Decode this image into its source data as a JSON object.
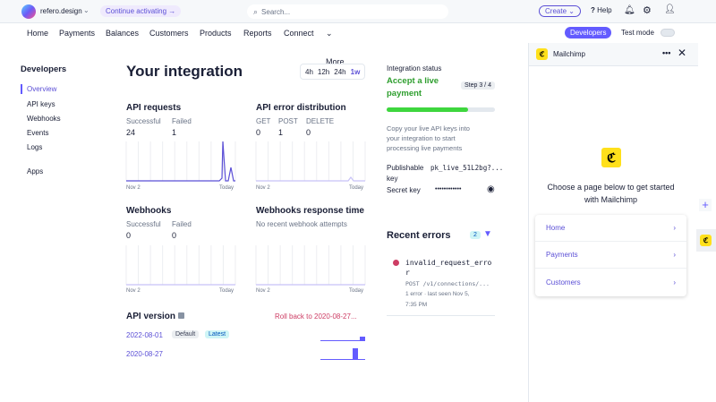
{
  "topbar": {
    "account": "refero.design",
    "activate": "Continue activating →",
    "search_placeholder": "Search...",
    "create": "Create",
    "help": "Help"
  },
  "nav": {
    "items": [
      "Home",
      "Payments",
      "Balances",
      "Customers",
      "Products",
      "Reports",
      "Connect",
      "More"
    ],
    "developers": "Developers",
    "test_mode": "Test mode",
    "test_mode_on": false
  },
  "sidebar": {
    "title": "Developers",
    "items": [
      "Overview",
      "API keys",
      "Webhooks",
      "Events",
      "Logs",
      "Apps"
    ],
    "active": "Overview"
  },
  "main": {
    "title": "Your integration",
    "ranges": [
      "4h",
      "12h",
      "24h",
      "1w"
    ],
    "active_range": "1w",
    "api_requests": {
      "title": "API requests",
      "labels": [
        "Successful",
        "Failed"
      ],
      "values": [
        "24",
        "1"
      ],
      "x_start": "Nov 2",
      "x_end": "Today"
    },
    "api_errors": {
      "title": "API error distribution",
      "labels": [
        "GET",
        "POST",
        "DELETE"
      ],
      "values": [
        "0",
        "1",
        "0"
      ],
      "x_start": "Nov 2",
      "x_end": "Today"
    },
    "webhooks": {
      "title": "Webhooks",
      "labels": [
        "Successful",
        "Failed"
      ],
      "values": [
        "0",
        "0"
      ],
      "x_start": "Nov 2",
      "x_end": "Today"
    },
    "webhook_time": {
      "title": "Webhooks response time",
      "note": "No recent webhook attempts",
      "x_start": "Nov 2",
      "x_end": "Today"
    },
    "api_version": {
      "title": "API version",
      "rollback": "Roll back to 2020-08-27...",
      "versions": [
        {
          "date": "2022-08-01",
          "badges": [
            "Default",
            "Latest"
          ]
        },
        {
          "date": "2020-08-27",
          "badges": []
        }
      ]
    }
  },
  "status": {
    "label": "Integration status",
    "title_line1": "Accept a live",
    "title_line2": "payment",
    "step": "Step 3 / 4",
    "progress": 0.75,
    "desc": [
      "Copy your live API keys into",
      "your integration to start",
      "processing live payments"
    ],
    "pub_label": "Publishable",
    "pub_label2": "key",
    "pub_value": "pk_live_51L2bg?...",
    "secret_label": "Secret key",
    "secret_value": "••••••••••••"
  },
  "errors": {
    "title": "Recent errors",
    "count": "2",
    "item": {
      "code1": "invalid_request_erro",
      "code2": "r",
      "path": "POST /v1/connections/...",
      "meta1": "1 error · last seen Nov 5,",
      "meta2": "7:35 PM"
    }
  },
  "drawer": {
    "title": "Mailchimp",
    "prompt1": "Choose a page below to get started",
    "prompt2": "with Mailchimp",
    "pages": [
      "Home",
      "Payments",
      "Customers"
    ]
  },
  "colors": {
    "accent": "#635bff",
    "green": "#2e9e2e",
    "progress": "#3ed63e",
    "error": "#cd3d64"
  }
}
